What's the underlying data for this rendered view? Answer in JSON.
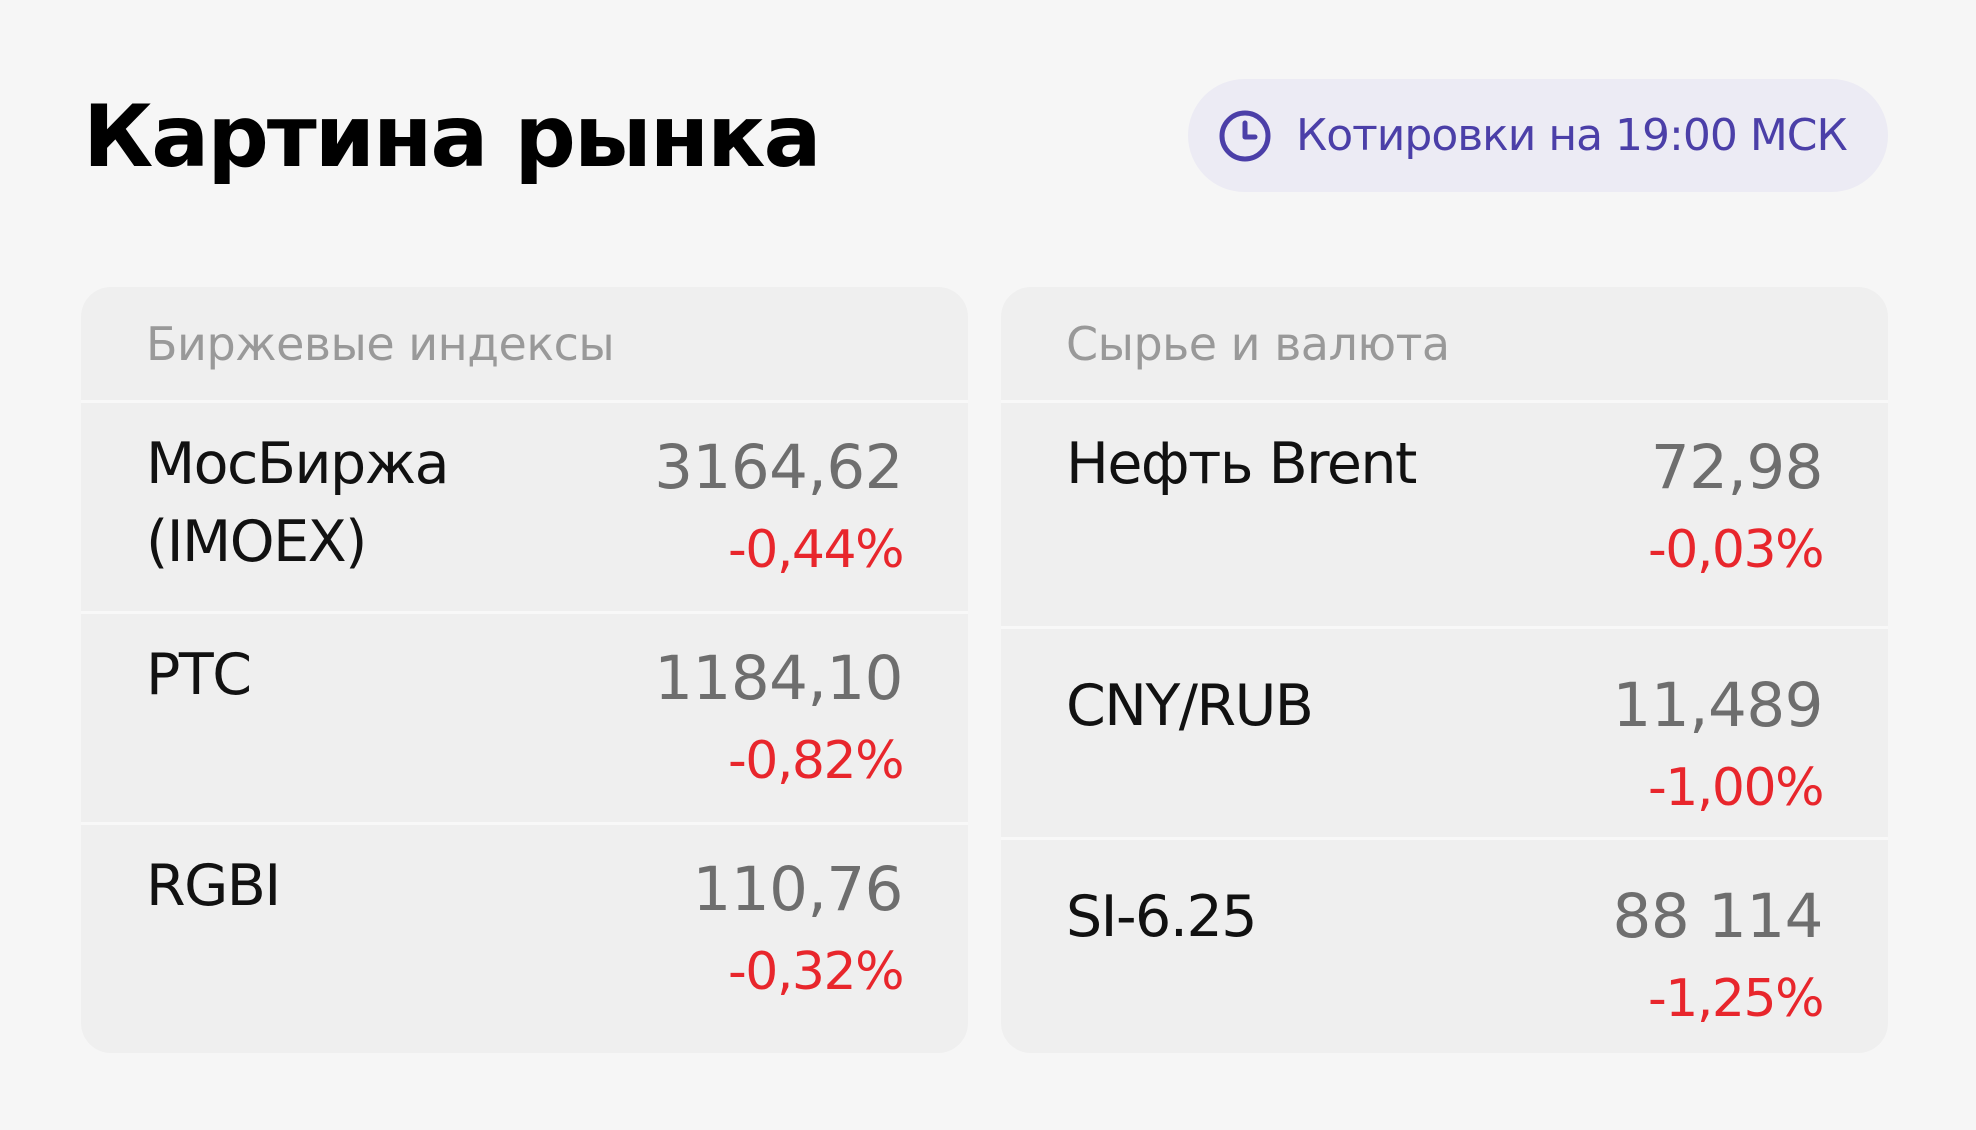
{
  "header": {
    "title": "Картина рынка",
    "badge": "Котировки на 19:00 МСК"
  },
  "panels": [
    {
      "title": "Биржевые индексы",
      "rows": [
        {
          "name": "МосБиржа (IMOEX)",
          "value": "3164,62",
          "change": "-0,44%"
        },
        {
          "name": "РТС",
          "value": "1184,10",
          "change": "-0,82%"
        },
        {
          "name": "RGBI",
          "value": "110,76",
          "change": "-0,32%"
        }
      ]
    },
    {
      "title": "Сырье и валюта",
      "rows": [
        {
          "name": "Нефть Brent",
          "value": "72,98",
          "change": "-0,03%"
        },
        {
          "name": "CNY/RUB",
          "value": "11,489",
          "change": "-1,00%"
        },
        {
          "name": "SI-6.25",
          "value": "88 114",
          "change": "-1,25%"
        }
      ]
    }
  ]
}
